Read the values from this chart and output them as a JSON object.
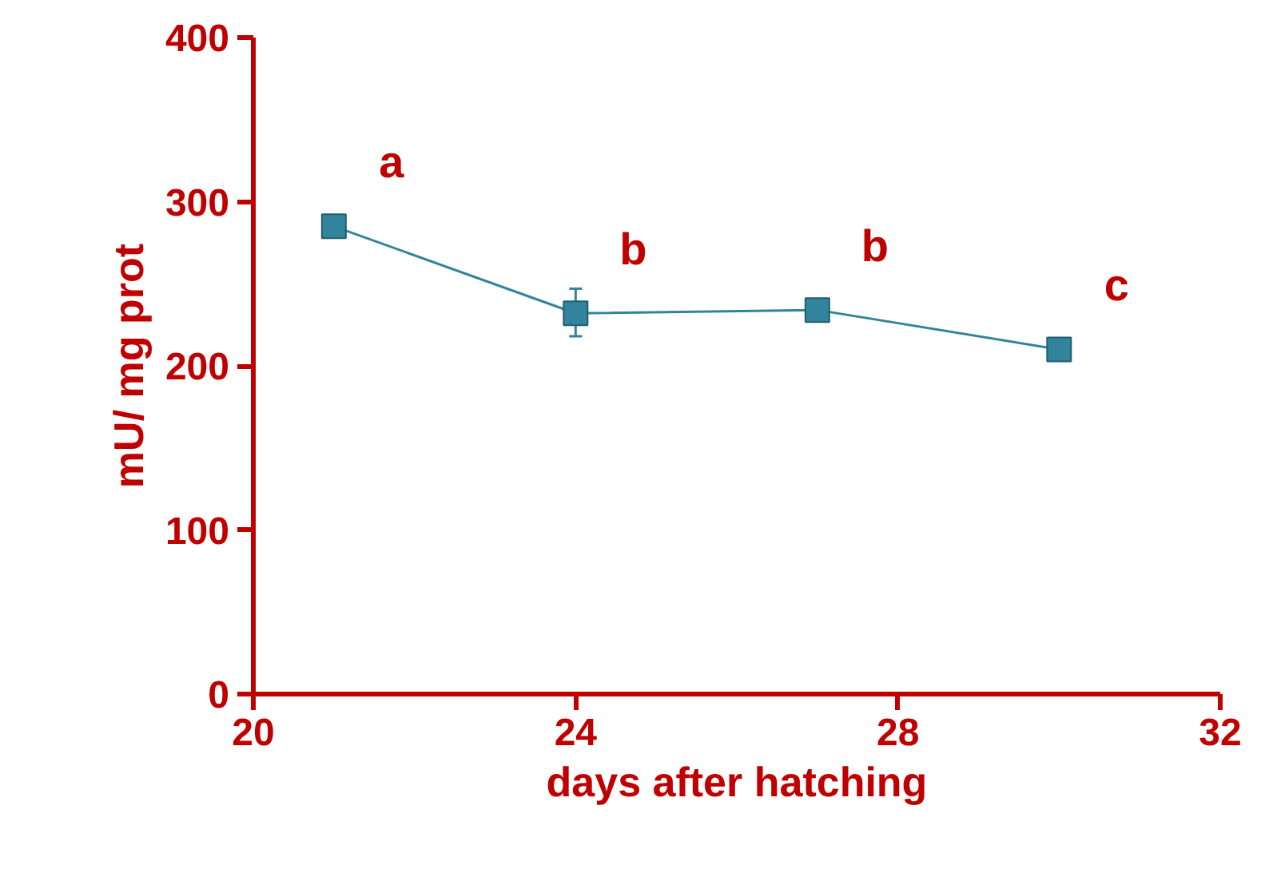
{
  "chart_data": {
    "type": "line",
    "xlabel": "days after hatching",
    "ylabel": "mU/ mg prot",
    "x": [
      21,
      24,
      27,
      30
    ],
    "series": [
      {
        "color": "#31849b",
        "values": [
          285,
          232,
          234,
          210
        ],
        "errors": [
          null,
          [
            218,
            247
          ],
          null,
          null
        ]
      }
    ],
    "xlim": [
      20,
      32
    ],
    "xticks": [
      20,
      24,
      28,
      32
    ],
    "ylim": [
      0,
      400
    ],
    "yticks": [
      0,
      100,
      200,
      300,
      400
    ],
    "marker": "square",
    "line_style": "solid",
    "annotations": [
      "a",
      "b",
      "b",
      "c"
    ]
  }
}
